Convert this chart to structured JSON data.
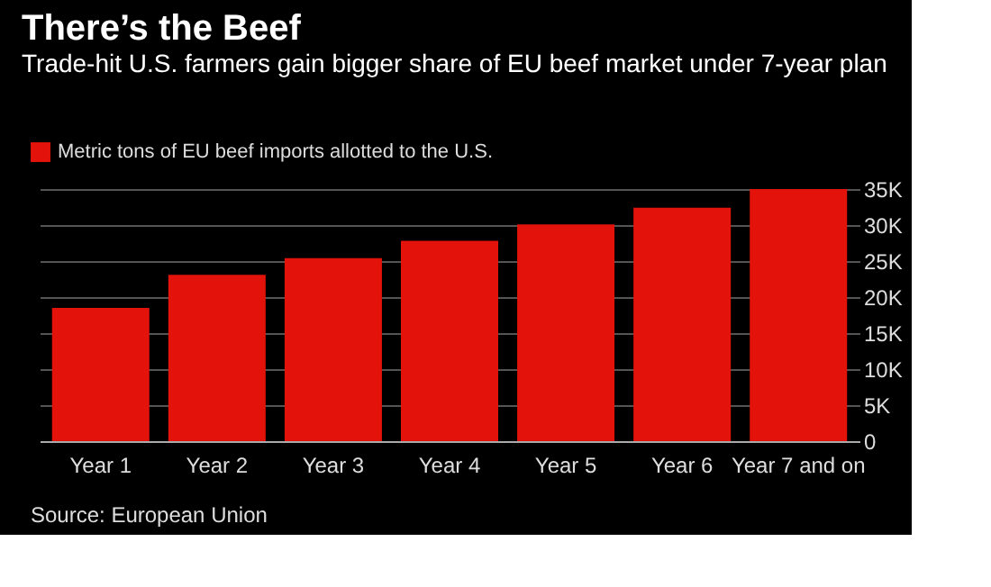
{
  "chart_data": {
    "type": "bar",
    "title": "There’s the Beef",
    "subtitle": "Trade-hit U.S. farmers gain bigger share of EU beef market under 7-year plan",
    "categories": [
      "Year 1",
      "Year 2",
      "Year 3",
      "Year 4",
      "Year 5",
      "Year 6",
      "Year 7 and on"
    ],
    "series": [
      {
        "name": "Metric tons of EU beef imports allotted to the U.S.",
        "color": "#e3120b",
        "values": [
          18500,
          23100,
          25400,
          27800,
          30100,
          32400,
          35000
        ]
      }
    ],
    "ylim": [
      0,
      35000
    ],
    "yticks": [
      0,
      {
        "value": 5000,
        "label": "5K"
      },
      {
        "value": 10000,
        "label": "10K"
      },
      {
        "value": 15000,
        "label": "15K"
      },
      {
        "value": 20000,
        "label": "20K"
      },
      {
        "value": 25000,
        "label": "25K"
      },
      {
        "value": 30000,
        "label": "30K"
      },
      {
        "value": 35000,
        "label": "35K"
      }
    ],
    "grid": "y",
    "legend": "top left",
    "annotations": [
      "Source: European Union"
    ]
  }
}
